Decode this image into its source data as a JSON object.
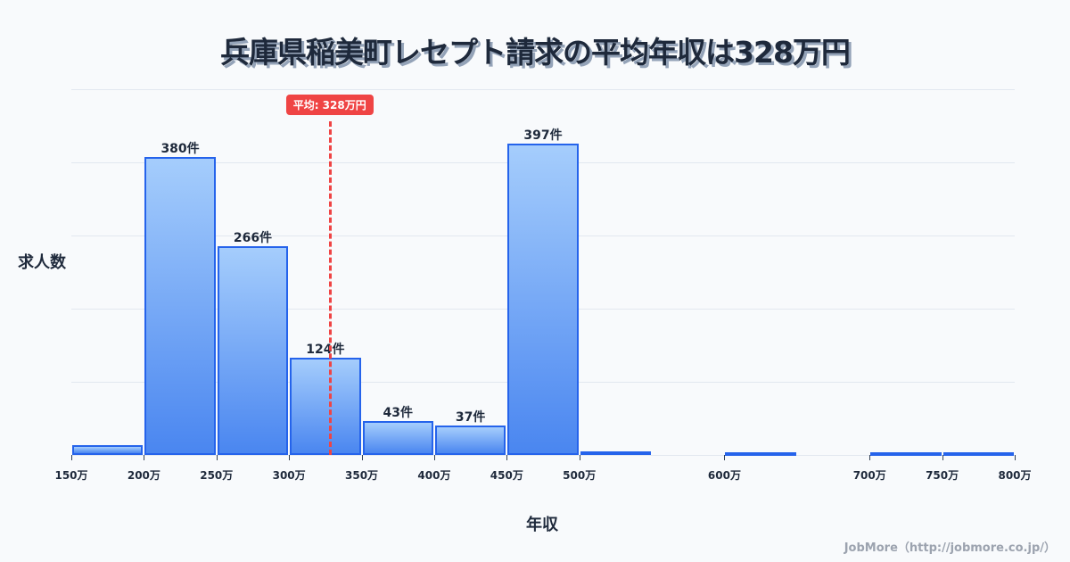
{
  "title": "兵庫県稲美町レセプト請求の平均年収は328万円",
  "ylabel": "求人数",
  "xlabel": "年収",
  "credit": "JobMore（http://jobmore.co.jp/）",
  "mean_label": "平均: 328万円",
  "colors": {
    "bar_border": "#2563eb",
    "bar_top": "#a5cdfc",
    "bar_bottom": "#4a86f0",
    "mean": "#ef4444"
  },
  "chart_data": {
    "type": "bar",
    "title": "兵庫県稲美町レセプト請求の平均年収は328万円",
    "xlabel": "年収",
    "ylabel": "求人数",
    "bins": [
      {
        "range": "150-200万",
        "value": 12,
        "label": ""
      },
      {
        "range": "200-250万",
        "value": 380,
        "label": "380件"
      },
      {
        "range": "250-300万",
        "value": 266,
        "label": "266件"
      },
      {
        "range": "300-350万",
        "value": 124,
        "label": "124件"
      },
      {
        "range": "350-400万",
        "value": 43,
        "label": "43件"
      },
      {
        "range": "400-450万",
        "value": 37,
        "label": "37件"
      },
      {
        "range": "450-500万",
        "value": 397,
        "label": "397件"
      },
      {
        "range": "500-550万",
        "value": 4,
        "label": ""
      },
      {
        "range": "600-650万",
        "value": 3,
        "label": ""
      },
      {
        "range": "700-750万",
        "value": 1,
        "label": ""
      },
      {
        "range": "750-800万",
        "value": 1,
        "label": ""
      }
    ],
    "x_ticks": [
      "150万",
      "200万",
      "250万",
      "300万",
      "350万",
      "400万",
      "450万",
      "500万",
      "600万",
      "700万",
      "750万",
      "800万"
    ],
    "mean": 328,
    "mean_label": "平均: 328万円",
    "grid": true,
    "ylim": [
      0,
      466
    ]
  }
}
